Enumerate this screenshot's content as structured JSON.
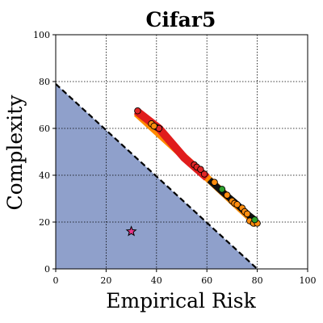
{
  "chart_data": {
    "type": "scatter",
    "title": "Cifar5",
    "xlabel": "Empirical Risk",
    "ylabel": "Complexity",
    "xlim": [
      0,
      100
    ],
    "ylim": [
      0,
      100
    ],
    "xticks": [
      "0",
      "20",
      "40",
      "60",
      "80",
      "100"
    ],
    "yticks": [
      "0",
      "20",
      "40",
      "60",
      "80",
      "100"
    ],
    "grid": true,
    "colors": {
      "region_fill": "#8fa0cb",
      "boundary_line": "#000000",
      "band_red": "#e01c1c",
      "band_orange": "#ff8a00",
      "band_dark": "#111111",
      "star": "#e8388a"
    },
    "region": {
      "description_points": [
        [
          0,
          0
        ],
        [
          0,
          79
        ],
        [
          80,
          0
        ]
      ],
      "boundary": [
        [
          0,
          79
        ],
        [
          80,
          0
        ]
      ]
    },
    "bands": [
      {
        "color_key": "band_red",
        "points": [
          [
            32,
            67.5
          ],
          [
            41,
            60
          ],
          [
            51,
            47.5
          ],
          [
            60,
            39
          ]
        ]
      },
      {
        "color_key": "band_dark",
        "points": [
          [
            39,
            61
          ],
          [
            42,
            59.5
          ]
        ]
      },
      {
        "color_key": "band_dark",
        "points": [
          [
            61,
            38
          ],
          [
            66,
            33
          ],
          [
            71,
            28.5
          ],
          [
            76,
            23.5
          ],
          [
            79,
            21
          ]
        ]
      }
    ],
    "series": [
      {
        "color": "#e02727",
        "values": [
          [
            32.5,
            67.5
          ],
          [
            41,
            60
          ],
          [
            55,
            44.5
          ],
          [
            56,
            43.5
          ],
          [
            57.5,
            42.5
          ],
          [
            59,
            40.5
          ],
          [
            78,
            20
          ]
        ]
      },
      {
        "color": "#ff8c0d",
        "values": [
          [
            38,
            62
          ],
          [
            39,
            61
          ],
          [
            63,
            37
          ],
          [
            68,
            31.5
          ],
          [
            70,
            29
          ],
          [
            71,
            28
          ],
          [
            72,
            27.5
          ],
          [
            74,
            26
          ],
          [
            75,
            24.5
          ],
          [
            76,
            23.5
          ],
          [
            77,
            20.5
          ],
          [
            78.5,
            19.5
          ],
          [
            80,
            19.5
          ]
        ]
      },
      {
        "color": "#2ca02c",
        "values": [
          [
            66,
            34
          ],
          [
            79,
            21
          ]
        ]
      }
    ],
    "highlight": {
      "x": 30,
      "y": 16,
      "marker": "star"
    }
  }
}
